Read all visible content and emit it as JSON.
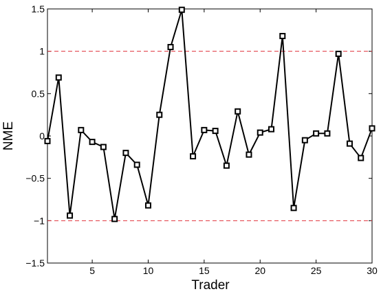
{
  "chart_data": {
    "type": "line",
    "xlabel": "Trader",
    "ylabel": "NME",
    "xlim": [
      1,
      30
    ],
    "ylim": [
      -1.5,
      1.5
    ],
    "xticks": [
      5,
      10,
      15,
      20,
      25,
      30
    ],
    "xtick_labels": [
      "5",
      "10",
      "15",
      "20",
      "25",
      "30"
    ],
    "yticks": [
      -1.5,
      -1,
      -0.5,
      0,
      0.5,
      1,
      1.5
    ],
    "ytick_labels": [
      "−1.5",
      "−1",
      "−0.5",
      "0",
      "0.5",
      "1",
      "1.5"
    ],
    "grid": false,
    "reference_lines": [
      {
        "y": 1,
        "style": "dashed",
        "color": "#e0303a"
      },
      {
        "y": -1,
        "style": "dashed",
        "color": "#e0303a"
      }
    ],
    "series": [
      {
        "marker": "square",
        "color": "#000000",
        "x": [
          1,
          2,
          3,
          4,
          5,
          6,
          7,
          8,
          9,
          10,
          11,
          12,
          13,
          14,
          15,
          16,
          17,
          18,
          19,
          20,
          21,
          22,
          23,
          24,
          25,
          26,
          27,
          28,
          29,
          30
        ],
        "values": [
          -0.06,
          0.69,
          -0.94,
          0.07,
          -0.07,
          -0.13,
          -0.98,
          -0.2,
          -0.34,
          -0.82,
          0.25,
          1.05,
          1.49,
          -0.24,
          0.07,
          0.06,
          -0.35,
          0.29,
          -0.22,
          0.04,
          0.08,
          1.18,
          -0.85,
          -0.05,
          0.03,
          0.03,
          0.97,
          -0.09,
          -0.26,
          0.09
        ]
      }
    ]
  }
}
